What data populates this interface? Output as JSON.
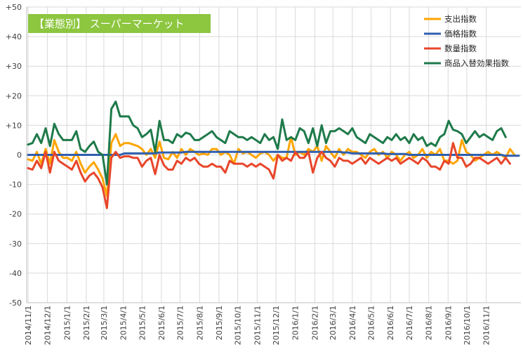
{
  "chart_data": {
    "type": "line",
    "title": "【業態別】 スーパーマーケット",
    "title_bg_color": "#8dc63f",
    "title_text_color": "#ffffff",
    "xlabel": "",
    "ylabel": "",
    "ylim": [
      -50,
      50
    ],
    "y_ticks": [
      "+50",
      "+40",
      "+30",
      "+20",
      "+10",
      "0",
      "-10",
      "-20",
      "-30",
      "-40",
      "-50"
    ],
    "y_tick_values": [
      50,
      40,
      30,
      20,
      10,
      0,
      -10,
      -20,
      -30,
      -40,
      -50
    ],
    "grid": true,
    "legend_position": "top-right",
    "x_tick_labels": [
      "2014/11/1",
      "2014/12/1",
      "2015/1/1",
      "2015/2/1",
      "2015/3/1",
      "2015/4/1",
      "2015/5/1",
      "2015/6/1",
      "2015/7/1",
      "2015/8/1",
      "2015/9/1",
      "2015/10/1",
      "2015/11/1",
      "2015/12/1",
      "2016/1/1",
      "2016/2/1",
      "2016/3/1",
      "2016/4/1",
      "2016/5/1",
      "2016/6/1",
      "2016/7/1",
      "2016/8/1",
      "2016/9/1",
      "2016/10/1",
      "2016/11/1"
    ],
    "x_tick_positions": [
      0,
      4.43,
      8.86,
      13.29,
      17.29,
      21.71,
      26,
      30.43,
      34.71,
      39.14,
      43.57,
      47.86,
      52.29,
      56.57,
      61,
      65.43,
      69.57,
      74,
      78.29,
      82.71,
      87,
      91.43,
      95.86,
      100.14,
      104.57
    ],
    "series": [
      {
        "name": "支出指数",
        "color": "#ffa500",
        "values": [
          -1.5,
          -2,
          1,
          -3,
          2,
          -3,
          5,
          1,
          -1,
          -1,
          -2,
          1,
          -3,
          -6,
          -4,
          -2.5,
          -5,
          -8,
          -14,
          4,
          7,
          3,
          4,
          4,
          3.5,
          3,
          2,
          0,
          2,
          -1,
          4.5,
          -1,
          -1.5,
          1,
          -1,
          2,
          0,
          2,
          1,
          0,
          0.5,
          0,
          2,
          2,
          0,
          1,
          0,
          -3,
          2,
          0.5,
          1,
          0,
          -1,
          0.5,
          1,
          0,
          -2,
          0,
          -1,
          -1,
          6,
          0,
          1,
          0,
          2,
          1,
          3,
          -2,
          3,
          1,
          -1,
          2,
          0,
          2,
          1,
          1,
          0,
          -1,
          1,
          2,
          0,
          1,
          -1,
          1,
          0,
          -2,
          0,
          1,
          -1,
          0,
          2,
          -1,
          1,
          0,
          2,
          -2,
          -2,
          -3,
          -2,
          5,
          1,
          0,
          -2,
          -1,
          0,
          1,
          0,
          1,
          0,
          -1,
          2,
          0
        ]
      },
      {
        "name": "価格指数",
        "color": "#2f5faf",
        "values": [
          0,
          0,
          0,
          0,
          0,
          0,
          0,
          0,
          0,
          0,
          0,
          0,
          0,
          0,
          0,
          0,
          0,
          0,
          0,
          0,
          0,
          0,
          0.5,
          0.5,
          0.5,
          0.5,
          0.5,
          0.5,
          0.5,
          0.5,
          0.8,
          0.8,
          0.8,
          0.8,
          0.8,
          0.8,
          1,
          1,
          1,
          1,
          1,
          1,
          1,
          1,
          1,
          1,
          1,
          1,
          1,
          1,
          1,
          1,
          1,
          1,
          1,
          1,
          1,
          1,
          1,
          1,
          1,
          1,
          1,
          1,
          1,
          1,
          1,
          1,
          1,
          1,
          1,
          1,
          0.8,
          0.8,
          0.5,
          0.5,
          0.5,
          0.5,
          0.5,
          0.5,
          0.5,
          0.5,
          0.3,
          0.3,
          0.3,
          0.3,
          0.3,
          0,
          0,
          0,
          0,
          0,
          0,
          0,
          0,
          0,
          0,
          0,
          0,
          0,
          0,
          0,
          0,
          0,
          0,
          0,
          0,
          0,
          0,
          -0.3,
          -0.3,
          -0.3,
          -0.3
        ]
      },
      {
        "name": "数量指数",
        "color": "#e8462b",
        "values": [
          -4.5,
          -5,
          -2,
          -4.5,
          1,
          -6,
          1,
          -2,
          -3,
          -4,
          -5,
          -2,
          -6,
          -9,
          -7,
          -6,
          -8,
          -11,
          -18,
          -1,
          1,
          -1,
          -0.5,
          -0.5,
          -1,
          -1,
          -4,
          -2,
          -1,
          -6.5,
          0,
          -3.5,
          -5,
          -5,
          -2,
          -3,
          -1,
          -2,
          -1,
          -3,
          -4,
          -4,
          -3,
          -4,
          -4,
          -6,
          -2,
          -3,
          -3,
          -3,
          -4,
          -3,
          -4,
          -3,
          -4,
          -5,
          -8,
          0,
          -2,
          -1,
          -2,
          1,
          -1,
          -1,
          1,
          -6,
          -1,
          1,
          -1,
          -2,
          -4,
          -1,
          -2,
          -2,
          -3,
          -2,
          -1,
          -3,
          -1,
          -2,
          -3,
          -2,
          -1,
          -2,
          -1,
          -3,
          -2,
          -1,
          -2,
          -3,
          -1,
          -2,
          -4,
          -4,
          -5,
          -2,
          -3,
          4,
          -1,
          -1,
          -4,
          -3,
          -1,
          -1,
          -2,
          -3,
          -2,
          -1,
          -3,
          -1,
          -3
        ]
      },
      {
        "name": "商品入替効果指数",
        "color": "#1e7a4a",
        "values": [
          3.5,
          4,
          7,
          4,
          9,
          3,
          10.5,
          7,
          5,
          5,
          5,
          8,
          2,
          1,
          3,
          4.5,
          1,
          0,
          -10,
          15.5,
          18,
          13,
          13,
          13,
          10,
          9,
          6,
          7,
          8.5,
          1,
          11.5,
          5,
          5,
          4,
          7,
          6,
          7.5,
          7,
          5,
          5,
          6,
          7,
          8,
          6,
          5,
          4,
          8,
          7,
          6,
          6,
          5,
          6,
          5,
          4,
          7,
          5,
          6,
          2,
          12,
          5,
          6,
          5,
          9,
          8,
          4,
          9,
          3,
          10,
          4,
          8,
          8,
          9,
          8,
          7,
          9,
          6,
          5,
          4,
          7,
          6,
          5,
          4,
          6,
          5,
          7,
          5,
          6,
          4,
          7,
          5,
          6,
          3,
          4,
          3,
          6,
          7,
          11.5,
          8.5,
          8,
          7,
          4,
          6,
          8,
          6,
          7,
          6,
          5,
          8,
          9,
          6
        ]
      }
    ]
  }
}
